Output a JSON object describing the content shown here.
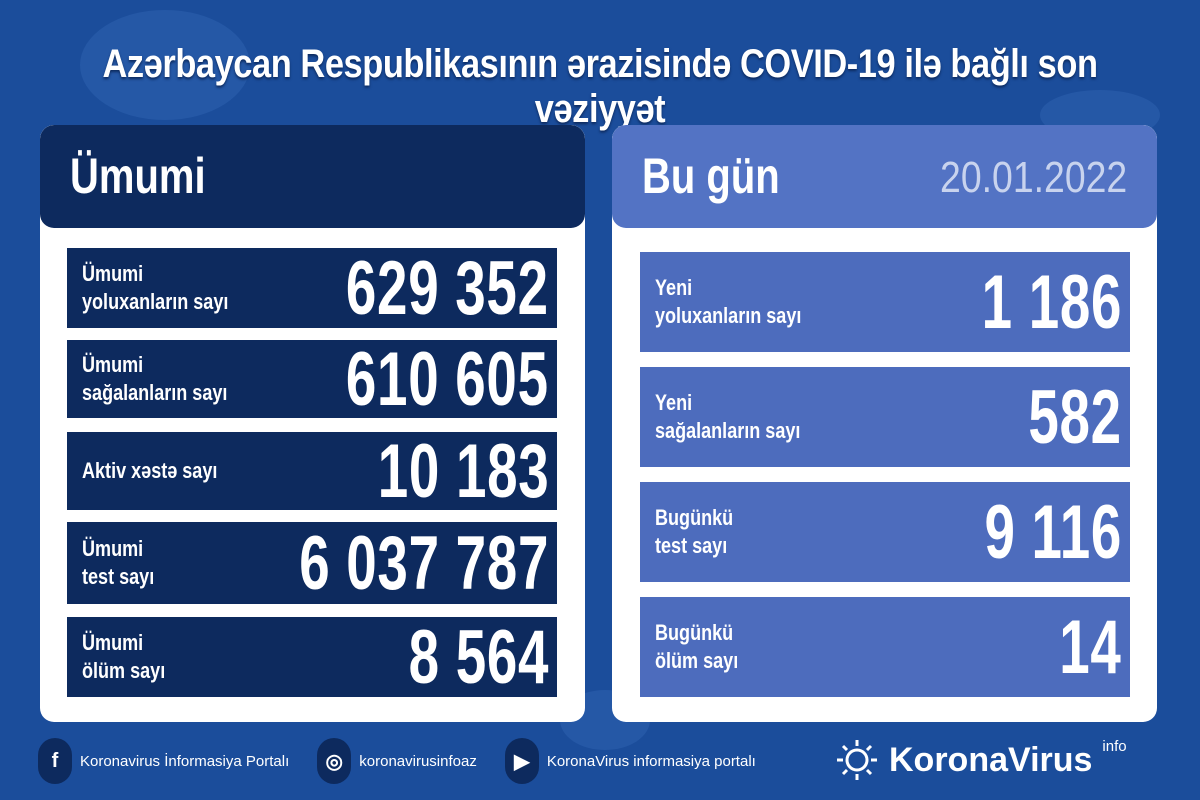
{
  "title": "Azərbaycan Respublikasının ərazisində COVID-19 ilə bağlı son vəziyyət",
  "colors": {
    "background": "#1b4d9b",
    "navy": "#0d2a5e",
    "today_row": "#4d6cbd"
  },
  "total": {
    "heading": "Ümumi",
    "rows": [
      {
        "label": "Ümumi\nyoluxanların sayı",
        "value": "629 352"
      },
      {
        "label": "Ümumi\nsağalanların sayı",
        "value": "610 605"
      },
      {
        "label": "Aktiv xəstə sayı",
        "value": "10 183"
      },
      {
        "label": "Ümumi\ntest sayı",
        "value": "6 037 787"
      },
      {
        "label": "Ümumi\nölüm sayı",
        "value": "8 564"
      }
    ]
  },
  "today": {
    "heading": "Bu gün",
    "date": "20.01.2022",
    "rows": [
      {
        "label": "Yeni\nyoluxanların sayı",
        "value": "1 186"
      },
      {
        "label": "Yeni\nsağalanların sayı",
        "value": "582"
      },
      {
        "label": "Bugünkü\ntest sayı",
        "value": "9 116"
      },
      {
        "label": "Bugünkü\nölüm sayı",
        "value": "14"
      }
    ]
  },
  "footer": {
    "links": [
      {
        "icon": "facebook-icon",
        "glyph": "f",
        "label": "Koronavirus İnformasiya Portalı"
      },
      {
        "icon": "instagram-icon",
        "glyph": "◎",
        "label": "koronavirusinfoaz"
      },
      {
        "icon": "youtube-icon",
        "glyph": "▶",
        "label": "KoronaVirus informasiya portalı"
      }
    ],
    "logo": "KoronaVirus",
    "logo_sup": "info"
  }
}
